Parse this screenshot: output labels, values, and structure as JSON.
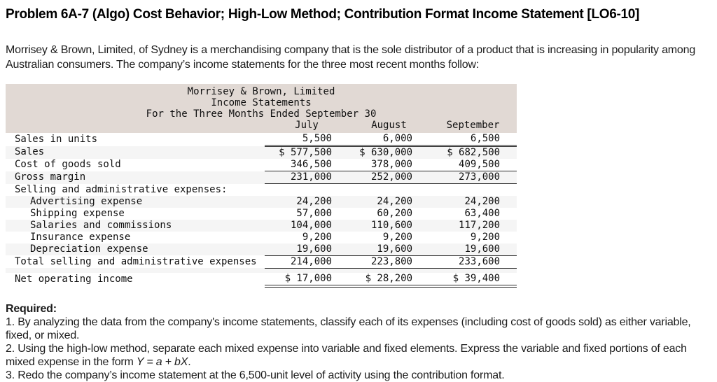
{
  "page": {
    "title": "Problem 6A-7 (Algo) Cost Behavior; High-Low Method; Contribution Format Income Statement [LO6-10]",
    "intro": "Morrisey & Brown, Limited, of Sydney is a merchandising company that is the sole distributor of a product that is increasing in popularity among Australian consumers. The company’s income statements for the three most recent months follow:"
  },
  "statement": {
    "header": {
      "company": "Morrisey & Brown, Limited",
      "title": "Income Statements",
      "period": "For the Three Months Ended September 30"
    },
    "columns": [
      "July",
      "August",
      "September"
    ],
    "rows": [
      {
        "label": "Sales in units",
        "values": [
          "5,500",
          "6,000",
          "6,500"
        ],
        "rule": "double",
        "shade": false
      },
      {
        "label": "Sales",
        "values": [
          "$ 577,500",
          "$ 630,000",
          "$ 682,500"
        ],
        "shade": true
      },
      {
        "label": "Cost of goods sold",
        "values": [
          "346,500",
          "378,000",
          "409,500"
        ],
        "rule": "single",
        "shade": false
      },
      {
        "label": "Gross margin",
        "values": [
          "231,000",
          "252,000",
          "273,000"
        ],
        "rule": "single",
        "shade": true
      },
      {
        "label": "Selling and administrative expenses:",
        "values": [
          "",
          "",
          ""
        ],
        "shade": false
      },
      {
        "label": "Advertising expense",
        "indent": true,
        "values": [
          "24,200",
          "24,200",
          "24,200"
        ],
        "shade": true
      },
      {
        "label": "Shipping expense",
        "indent": true,
        "values": [
          "57,000",
          "60,200",
          "63,400"
        ],
        "shade": false
      },
      {
        "label": "Salaries and commissions",
        "indent": true,
        "values": [
          "104,000",
          "110,600",
          "117,200"
        ],
        "shade": true
      },
      {
        "label": "Insurance expense",
        "indent": true,
        "values": [
          "9,200",
          "9,200",
          "9,200"
        ],
        "shade": false
      },
      {
        "label": "Depreciation expense",
        "indent": true,
        "values": [
          "19,600",
          "19,600",
          "19,600"
        ],
        "rule": "single",
        "shade": true
      },
      {
        "label": "Total selling and administrative expenses",
        "values": [
          "214,000",
          "223,800",
          "233,600"
        ],
        "rule": "single",
        "shade": false
      },
      {
        "type": "spacer",
        "shade": true
      },
      {
        "label": "Net operating income",
        "values": [
          "$ 17,000",
          "$ 28,200",
          "$ 39,400"
        ],
        "rule": "double-wide",
        "shade": false
      }
    ]
  },
  "required": {
    "heading": "Required:",
    "items": [
      {
        "segments": [
          {
            "text": "1. By analyzing the data from the company's income statements, classify each of its expenses (including cost of goods sold) as either variable, fixed, or mixed."
          }
        ]
      },
      {
        "segments": [
          {
            "text": "2. Using the high-low method, separate each mixed expense into variable and fixed elements. Express the variable and fixed portions of each mixed expense in the form "
          },
          {
            "text": "Y = a + bX",
            "italic": true
          },
          {
            "text": "."
          }
        ]
      },
      {
        "segments": [
          {
            "text": "3. Redo the company’s income statement at the 6,500-unit level of activity using the contribution format."
          }
        ]
      }
    ]
  },
  "colors": {
    "table_header_bg": "#e1d9d4",
    "row_stripe_bg": "#f5f5f5",
    "rule_color": "#2b2b2b",
    "text_color": "#1c1c1c"
  }
}
